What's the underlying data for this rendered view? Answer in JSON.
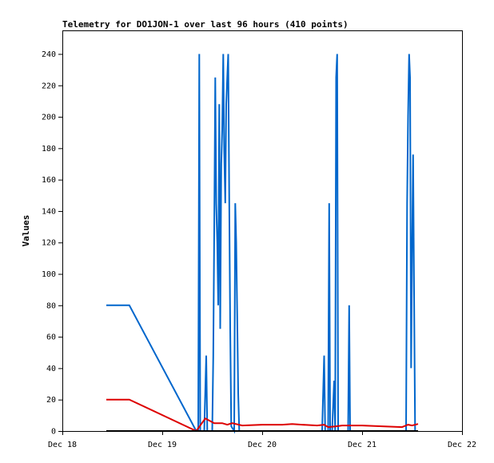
{
  "chart_data": {
    "type": "line",
    "title": "Telemetry for DO1JON-1 over last 96 hours (410 points)",
    "xlabel": "",
    "ylabel": "Values",
    "x_ticks": [
      {
        "day": 0,
        "label": "Dec 18"
      },
      {
        "day": 1,
        "label": "Dec 19"
      },
      {
        "day": 2,
        "label": "Dec 20"
      },
      {
        "day": 3,
        "label": "Dec 21"
      },
      {
        "day": 4,
        "label": "Dec 22"
      }
    ],
    "xlim": [
      0,
      4
    ],
    "ylim": [
      0,
      255
    ],
    "y_ticks": [
      0,
      20,
      40,
      60,
      80,
      100,
      120,
      140,
      160,
      180,
      200,
      220,
      240
    ],
    "grid": false,
    "colors": {
      "blue_series": "#0066cc",
      "red_series": "#dd0000",
      "black_series": "#000000"
    },
    "series": [
      {
        "color": "#0066cc",
        "points": [
          [
            0.44,
            80
          ],
          [
            0.67,
            80
          ],
          [
            1.34,
            0
          ],
          [
            1.36,
            0
          ],
          [
            1.37,
            240
          ],
          [
            1.38,
            0
          ],
          [
            1.42,
            0
          ],
          [
            1.43,
            25
          ],
          [
            1.44,
            48
          ],
          [
            1.45,
            0
          ],
          [
            1.5,
            0
          ],
          [
            1.51,
            48
          ],
          [
            1.52,
            128
          ],
          [
            1.53,
            225
          ],
          [
            1.54,
            145
          ],
          [
            1.55,
            120
          ],
          [
            1.56,
            80
          ],
          [
            1.57,
            208
          ],
          [
            1.58,
            65
          ],
          [
            1.59,
            170
          ],
          [
            1.6,
            192
          ],
          [
            1.61,
            240
          ],
          [
            1.62,
            178
          ],
          [
            1.63,
            145
          ],
          [
            1.64,
            208
          ],
          [
            1.65,
            225
          ],
          [
            1.66,
            240
          ],
          [
            1.67,
            145
          ],
          [
            1.68,
            65
          ],
          [
            1.69,
            3
          ],
          [
            1.72,
            0
          ],
          [
            1.73,
            145
          ],
          [
            1.74,
            120
          ],
          [
            1.75,
            72
          ],
          [
            1.76,
            24
          ],
          [
            1.77,
            0
          ],
          [
            2.6,
            0
          ],
          [
            2.61,
            25
          ],
          [
            2.62,
            48
          ],
          [
            2.63,
            0
          ],
          [
            2.66,
            0
          ],
          [
            2.67,
            145
          ],
          [
            2.68,
            0
          ],
          [
            2.7,
            0
          ],
          [
            2.71,
            17
          ],
          [
            2.72,
            32
          ],
          [
            2.73,
            0
          ],
          [
            2.74,
            225
          ],
          [
            2.75,
            240
          ],
          [
            2.76,
            0
          ],
          [
            2.86,
            0
          ],
          [
            2.87,
            80
          ],
          [
            2.88,
            0
          ],
          [
            3.44,
            0
          ],
          [
            3.45,
            145
          ],
          [
            3.46,
            200
          ],
          [
            3.47,
            240
          ],
          [
            3.48,
            225
          ],
          [
            3.49,
            40
          ],
          [
            3.5,
            112
          ],
          [
            3.51,
            176
          ],
          [
            3.52,
            88
          ],
          [
            3.53,
            0
          ]
        ]
      },
      {
        "color": "#dd0000",
        "points": [
          [
            0.44,
            20
          ],
          [
            0.67,
            20
          ],
          [
            1.34,
            0
          ],
          [
            1.43,
            8
          ],
          [
            1.52,
            5
          ],
          [
            1.6,
            5
          ],
          [
            1.65,
            4
          ],
          [
            1.7,
            5
          ],
          [
            1.8,
            3.5
          ],
          [
            2.0,
            4
          ],
          [
            2.2,
            4
          ],
          [
            2.3,
            4.5
          ],
          [
            2.4,
            4
          ],
          [
            2.55,
            3.5
          ],
          [
            2.62,
            4
          ],
          [
            2.66,
            2.5
          ],
          [
            2.74,
            3
          ],
          [
            2.8,
            3.5
          ],
          [
            3.0,
            3.5
          ],
          [
            3.2,
            3
          ],
          [
            3.4,
            2.5
          ],
          [
            3.46,
            4
          ],
          [
            3.5,
            3.5
          ],
          [
            3.56,
            4.5
          ]
        ]
      },
      {
        "color": "#000000",
        "points": [
          [
            0.44,
            0
          ],
          [
            1.34,
            0
          ],
          [
            3.56,
            0
          ]
        ]
      }
    ]
  }
}
